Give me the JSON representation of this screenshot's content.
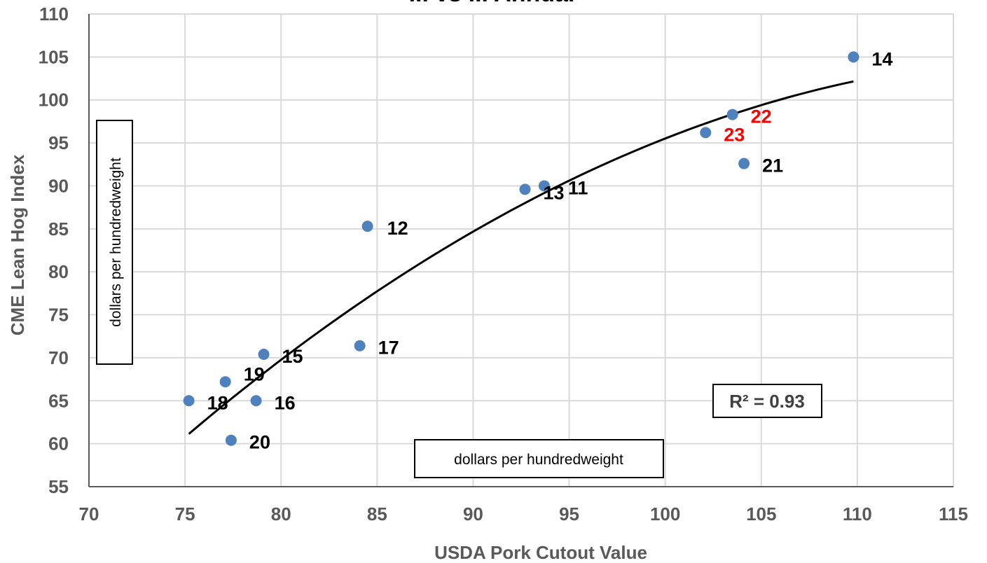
{
  "chart_data": {
    "type": "scatter",
    "title": "... vs ... Annual",
    "xlabel": "USDA Pork Cutout Value",
    "ylabel": "CME Lean Hog Index",
    "xlim": [
      70,
      115
    ],
    "ylim": [
      55,
      110
    ],
    "x_ticks": [
      "70",
      "75",
      "80",
      "85",
      "90",
      "95",
      "100",
      "105",
      "110",
      "115"
    ],
    "y_ticks": [
      "55",
      "60",
      "65",
      "70",
      "75",
      "80",
      "85",
      "90",
      "95",
      "100",
      "105",
      "110"
    ],
    "grid": true,
    "points": [
      {
        "label": "11",
        "x": 93.7,
        "y": 90.0,
        "label_color": "#000000"
      },
      {
        "label": "12",
        "x": 84.5,
        "y": 85.3,
        "label_color": "#000000"
      },
      {
        "label": "13",
        "x": 92.7,
        "y": 89.6,
        "label_color": "#000000"
      },
      {
        "label": "14",
        "x": 109.8,
        "y": 105.0,
        "label_color": "#000000"
      },
      {
        "label": "15",
        "x": 79.1,
        "y": 70.4,
        "label_color": "#000000"
      },
      {
        "label": "16",
        "x": 78.7,
        "y": 65.0,
        "label_color": "#000000"
      },
      {
        "label": "17",
        "x": 84.1,
        "y": 71.4,
        "label_color": "#000000"
      },
      {
        "label": "18",
        "x": 75.2,
        "y": 65.0,
        "label_color": "#000000"
      },
      {
        "label": "19",
        "x": 77.1,
        "y": 67.2,
        "label_color": "#000000"
      },
      {
        "label": "20",
        "x": 77.4,
        "y": 60.4,
        "label_color": "#000000"
      },
      {
        "label": "21",
        "x": 104.1,
        "y": 92.6,
        "label_color": "#000000"
      },
      {
        "label": "22",
        "x": 103.5,
        "y": 98.3,
        "label_color": "#ff0000"
      },
      {
        "label": "23",
        "x": 102.1,
        "y": 96.2,
        "label_color": "#ff0000"
      }
    ],
    "trendline": {
      "type": "polynomial-2",
      "x_range": [
        75.2,
        109.8
      ],
      "points": [
        [
          75.2,
          62.1
        ],
        [
          80,
          68.5
        ],
        [
          85,
          77.5
        ],
        [
          90,
          84.7
        ],
        [
          95,
          90.9
        ],
        [
          100,
          96.0
        ],
        [
          105,
          99.6
        ],
        [
          109.8,
          101.7
        ]
      ]
    },
    "r2_label": "R² = 0.93",
    "x_unit_box": "dollars per hundredweight",
    "y_unit_box": "dollars per hundredweight",
    "marker_color": "#4f81bd",
    "trend_color": "#000000",
    "grid_color": "#d9d9d9"
  }
}
